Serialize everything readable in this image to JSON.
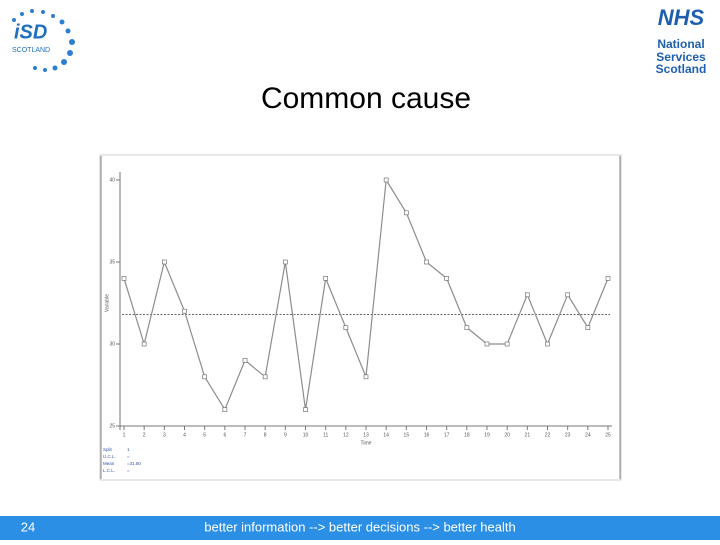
{
  "slide": {
    "title": "Common cause",
    "page_number": "24",
    "footer": "better information --> better decisions --> better health",
    "logo_left": [
      "iSD",
      "SCOTLAND"
    ],
    "logo_right": [
      "NHS",
      "National",
      "Services",
      "Scotland"
    ]
  },
  "chart_data": {
    "type": "line",
    "xlabel": "Time",
    "ylabel": "Variable",
    "x": [
      1,
      2,
      3,
      4,
      5,
      6,
      7,
      8,
      9,
      10,
      11,
      12,
      13,
      14,
      15,
      16,
      17,
      18,
      19,
      20,
      21,
      22,
      23,
      24,
      25
    ],
    "series": [
      {
        "name": "Variable",
        "color": "#8c8c8c",
        "values": [
          34,
          30,
          35,
          32,
          28,
          26,
          29,
          28,
          35,
          26,
          34,
          31,
          28,
          40,
          38,
          35,
          34,
          31,
          30,
          30,
          33,
          30,
          33,
          31,
          34
        ]
      }
    ],
    "mean": 31.8,
    "mean_color": "#333333",
    "xlim": [
      1,
      25
    ],
    "xticks": [
      1,
      2,
      3,
      4,
      5,
      6,
      7,
      8,
      9,
      10,
      11,
      12,
      13,
      14,
      15,
      16,
      17,
      18,
      19,
      20,
      21,
      22,
      23,
      24,
      25
    ],
    "ylim": [
      25,
      40
    ],
    "yticks": [
      25,
      30,
      35,
      40
    ],
    "legend": [
      [
        "Split",
        "1"
      ],
      [
        "U.C.L.",
        "="
      ],
      [
        "Mean",
        "=31.80"
      ],
      [
        "L.C.L.",
        "="
      ]
    ]
  }
}
